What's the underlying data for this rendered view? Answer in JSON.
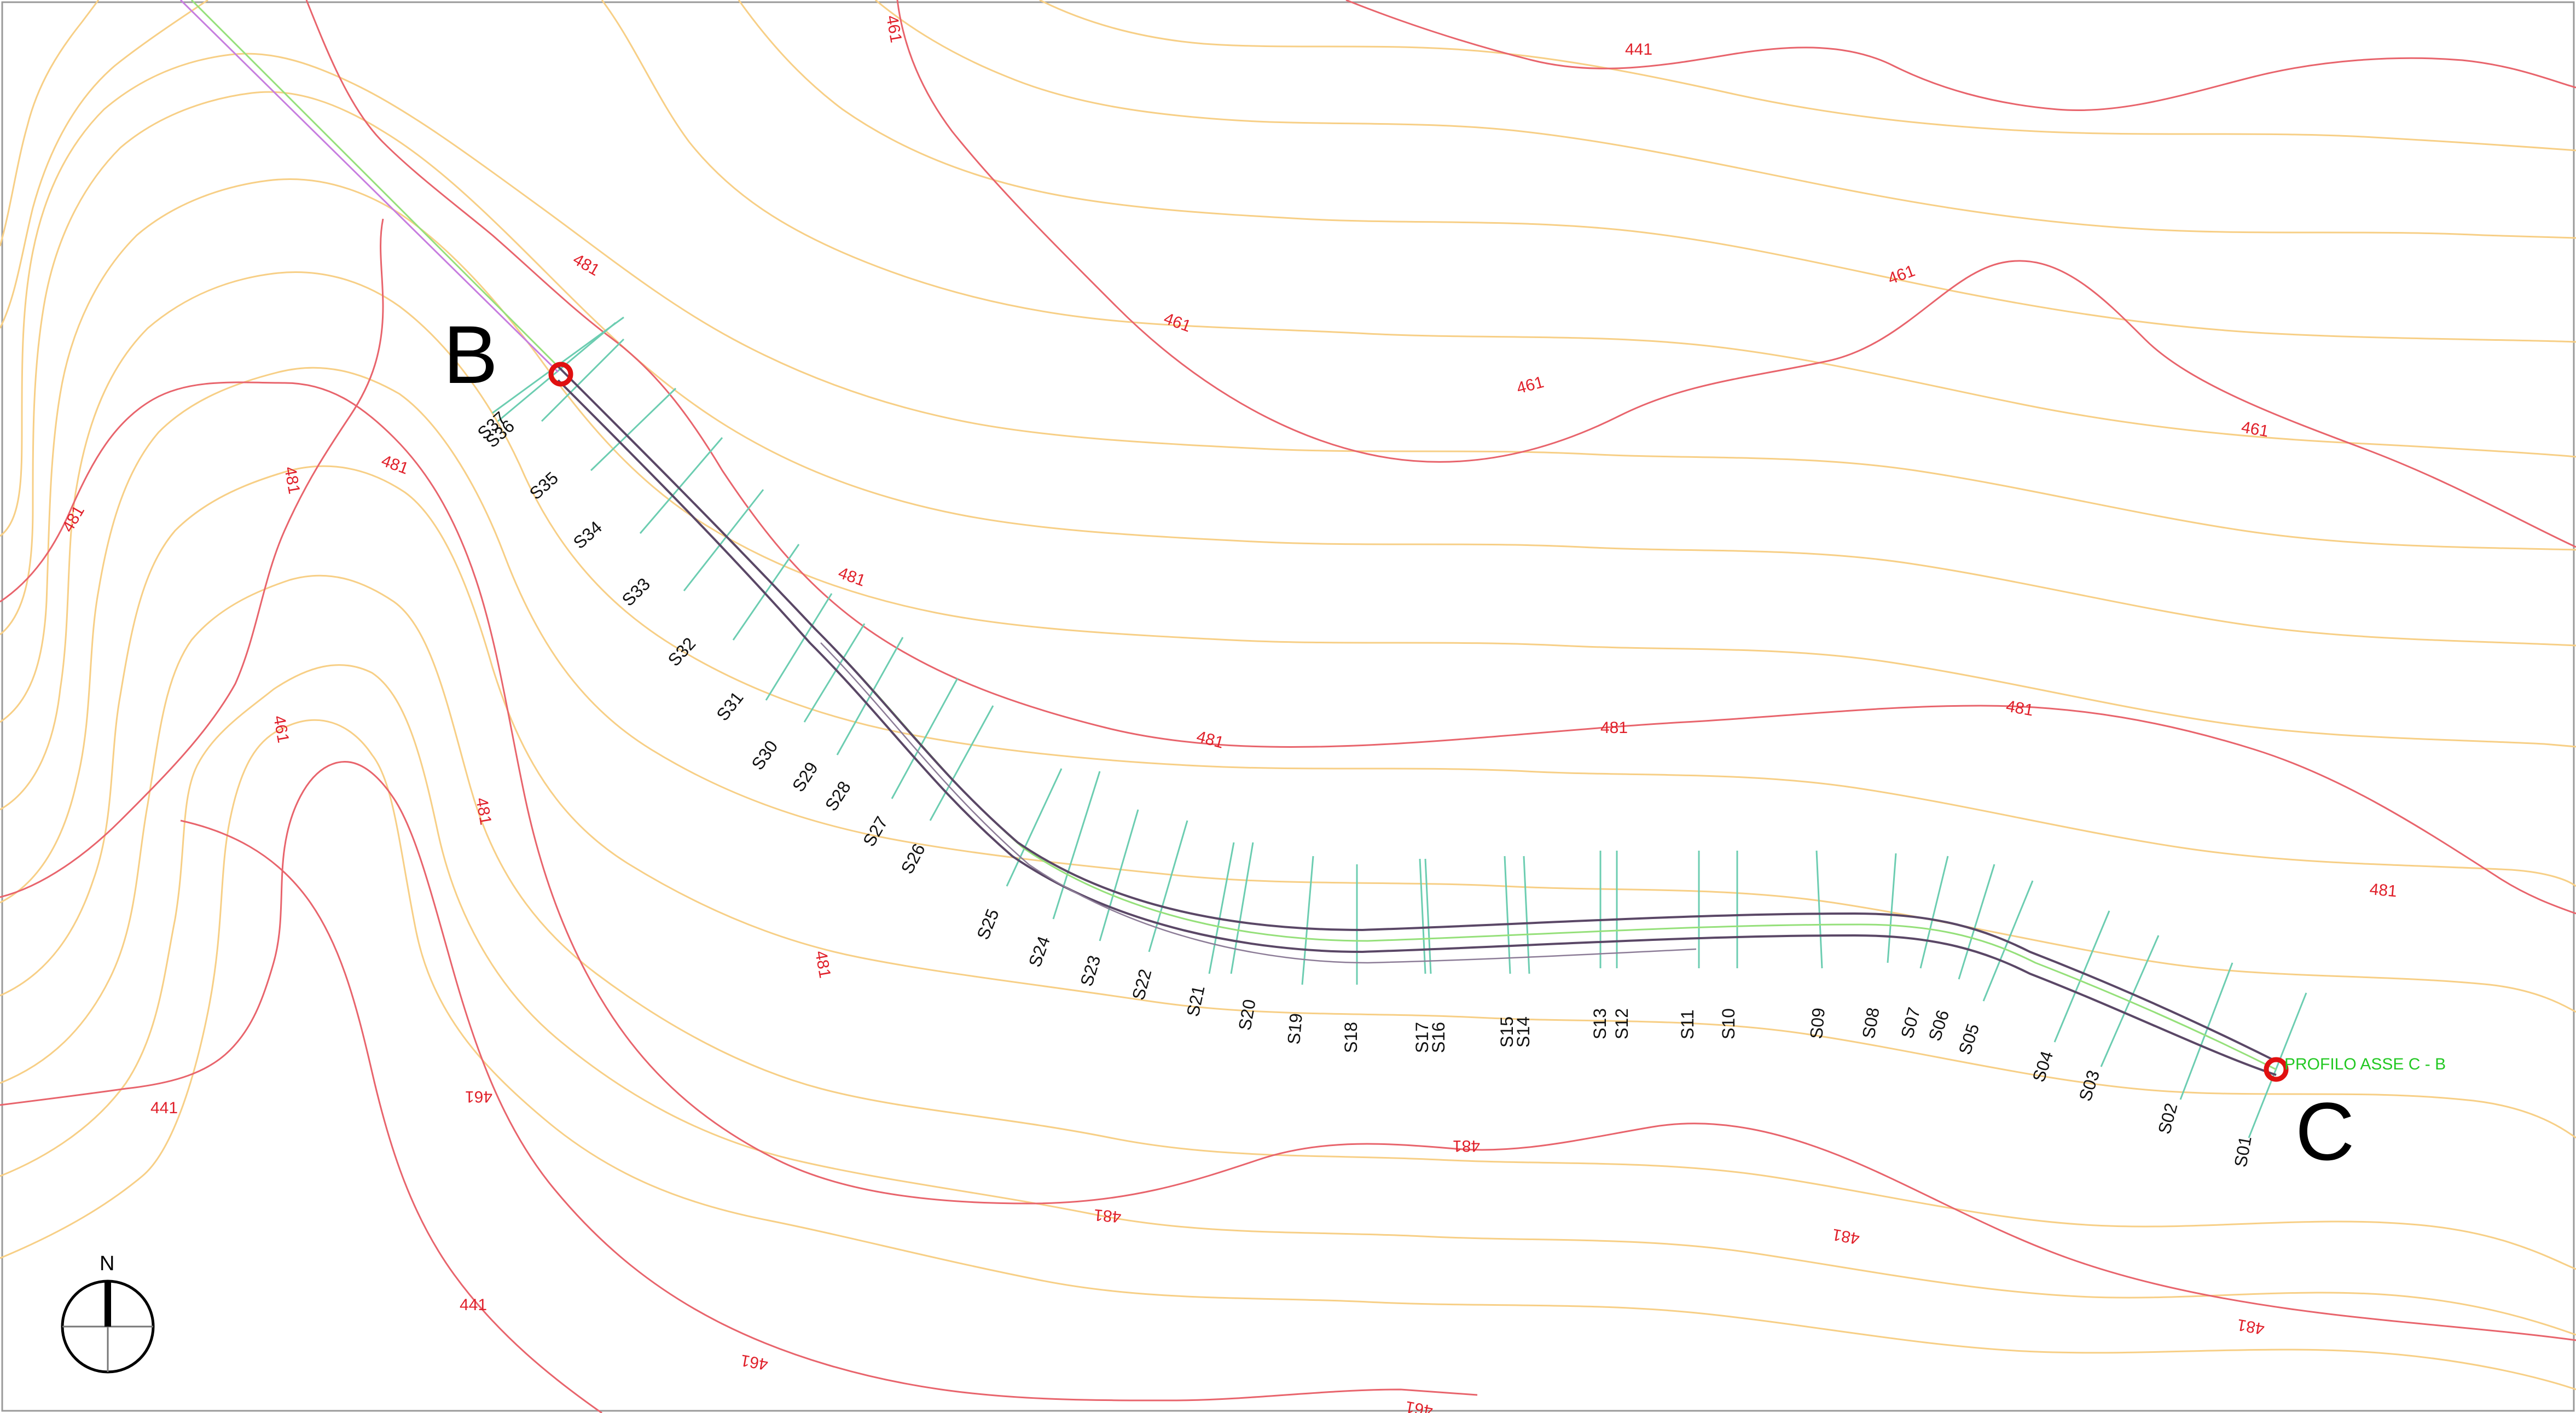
{
  "map": {
    "points": [
      {
        "id": "B",
        "label": "B"
      },
      {
        "id": "C",
        "label": "C"
      }
    ],
    "profile_label": "PROFILO ASSE C - B",
    "north_label": "N",
    "contour_labels": [
      {
        "id": "c1",
        "text": "461"
      },
      {
        "id": "c2",
        "text": "441"
      },
      {
        "id": "c3",
        "text": "481"
      },
      {
        "id": "c4",
        "text": "461"
      },
      {
        "id": "c5",
        "text": "461"
      },
      {
        "id": "c6",
        "text": "461"
      },
      {
        "id": "c7",
        "text": "461"
      },
      {
        "id": "c8",
        "text": "481"
      },
      {
        "id": "c9",
        "text": "481"
      },
      {
        "id": "c10",
        "text": "481"
      },
      {
        "id": "c11",
        "text": "481"
      },
      {
        "id": "c12",
        "text": "481"
      },
      {
        "id": "c13",
        "text": "481"
      },
      {
        "id": "c14",
        "text": "481"
      },
      {
        "id": "c15",
        "text": "481"
      },
      {
        "id": "c16",
        "text": "481"
      },
      {
        "id": "c17",
        "text": "461"
      },
      {
        "id": "c18",
        "text": "481"
      },
      {
        "id": "c19",
        "text": "461"
      },
      {
        "id": "c20",
        "text": "441"
      },
      {
        "id": "c21",
        "text": "441"
      },
      {
        "id": "c22",
        "text": "461"
      },
      {
        "id": "c23",
        "text": "481"
      },
      {
        "id": "c24",
        "text": "481"
      },
      {
        "id": "c25",
        "text": "481"
      },
      {
        "id": "c26",
        "text": "461"
      },
      {
        "id": "c27",
        "text": "481"
      },
      {
        "id": "c28",
        "text": "461"
      }
    ],
    "sections": [
      "S01",
      "S02",
      "S03",
      "S04",
      "S05",
      "S06",
      "S07",
      "S08",
      "S09",
      "S10",
      "S11",
      "S12",
      "S13",
      "S14",
      "S15",
      "S16",
      "S17",
      "S18",
      "S19",
      "S20",
      "S21",
      "S22",
      "S23",
      "S24",
      "S25",
      "S26",
      "S27",
      "S28",
      "S29",
      "S30",
      "S31",
      "S32",
      "S33",
      "S34",
      "S35",
      "S36",
      "S37"
    ]
  }
}
